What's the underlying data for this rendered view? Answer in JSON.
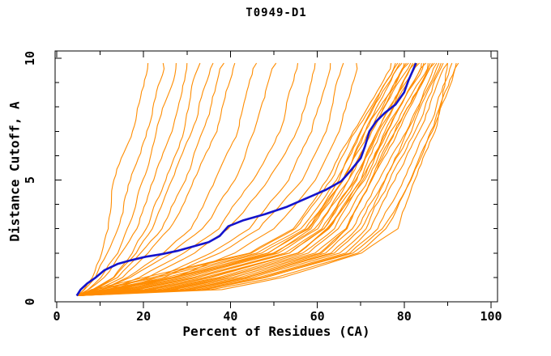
{
  "chart_data": {
    "type": "line",
    "title": "T0949-D1",
    "xlabel": "Percent of Residues (CA)",
    "ylabel": "Distance Cutoff, A",
    "xlim": [
      0,
      102
    ],
    "ylim": [
      0,
      10.3
    ],
    "x_major_ticks": [
      0,
      20,
      40,
      60,
      80,
      100
    ],
    "x_minor_step": 10,
    "y_major_ticks": [
      0,
      5,
      10
    ],
    "y_minor_step": 1,
    "grid": false,
    "legend": "none",
    "colors": {
      "model": "#ff8c00",
      "highlight": "#1414cc",
      "axis": "#000000",
      "background": "#ffffff"
    },
    "cutoff_levels": [
      0.25,
      0.5,
      1,
      2,
      3,
      5,
      7,
      9.8
    ],
    "highlighted_series": {
      "name": "highlighted-model",
      "points": [
        [
          4.6,
          0.25
        ],
        [
          5.5,
          0.5
        ],
        [
          7,
          0.75
        ],
        [
          9,
          1.0
        ],
        [
          11,
          1.3
        ],
        [
          14,
          1.55
        ],
        [
          17,
          1.7
        ],
        [
          20.5,
          1.85
        ],
        [
          24,
          1.95
        ],
        [
          28,
          2.1
        ],
        [
          32,
          2.3
        ],
        [
          35,
          2.45
        ],
        [
          37.5,
          2.7
        ],
        [
          39.5,
          3.1
        ],
        [
          43,
          3.35
        ],
        [
          48,
          3.6
        ],
        [
          53,
          3.9
        ],
        [
          57.5,
          4.25
        ],
        [
          62,
          4.6
        ],
        [
          65.5,
          4.95
        ],
        [
          67.5,
          5.35
        ],
        [
          70,
          5.9
        ],
        [
          71,
          6.4
        ],
        [
          72,
          7.0
        ],
        [
          73.5,
          7.4
        ],
        [
          75.5,
          7.75
        ],
        [
          78,
          8.1
        ],
        [
          80,
          8.6
        ],
        [
          81,
          9.1
        ],
        [
          82,
          9.5
        ],
        [
          82.7,
          9.8
        ]
      ]
    },
    "model_series_percent_at_cutoff": [
      [
        4.7,
        6,
        8,
        10,
        11.5,
        13.5,
        17,
        21
      ],
      [
        4.7,
        6.5,
        9,
        12,
        14,
        17,
        20.5,
        24.5
      ],
      [
        4.7,
        7,
        10,
        13.5,
        16,
        19.5,
        23,
        27.5
      ],
      [
        4.7,
        7.5,
        11,
        15,
        18,
        22,
        26,
        30
      ],
      [
        4.7,
        8,
        12.5,
        17,
        20.5,
        25,
        29,
        33
      ],
      [
        4.7,
        8.5,
        13,
        18.5,
        22.5,
        27,
        31.5,
        36
      ],
      [
        4.7,
        9,
        14,
        19.5,
        24.5,
        29.5,
        34,
        38.5
      ],
      [
        4.7,
        9.5,
        15,
        21,
        26,
        31.5,
        36.5,
        41
      ],
      [
        4.7,
        10,
        16,
        24,
        30.5,
        37,
        42,
        46
      ],
      [
        4.7,
        11,
        17.5,
        26.5,
        33.5,
        41,
        46,
        50.5
      ],
      [
        4.7,
        12,
        19,
        29,
        37,
        45,
        51,
        55.5
      ],
      [
        4.7,
        13,
        21,
        32,
        40,
        49,
        55,
        59.5
      ],
      [
        4.7,
        14,
        23,
        35,
        44,
        53,
        58.5,
        63
      ],
      [
        4.7,
        15,
        25,
        38,
        47,
        56,
        61.5,
        66
      ],
      [
        4.7,
        16,
        27,
        41,
        50,
        59,
        64.5,
        69
      ],
      [
        4.7,
        8,
        20,
        44,
        54,
        62,
        68,
        77
      ],
      [
        4.7,
        9,
        22,
        45,
        55,
        63,
        69,
        78
      ],
      [
        4.7,
        10,
        23,
        46,
        56,
        64,
        70,
        78.5
      ],
      [
        4.7,
        11,
        25,
        47,
        57,
        65,
        70.5,
        79
      ],
      [
        4.7,
        12,
        26,
        48,
        57.5,
        65.5,
        71,
        79.5
      ],
      [
        4.7,
        13,
        27,
        49,
        58,
        66,
        71.5,
        80
      ],
      [
        4.7,
        14,
        28,
        50,
        59,
        66.5,
        72,
        80.5
      ],
      [
        4.7,
        15,
        29,
        50.5,
        59.5,
        67,
        72.5,
        81
      ],
      [
        4.7,
        16,
        30,
        51,
        60,
        67.5,
        73,
        81.5
      ],
      [
        4.7,
        17,
        31,
        52,
        60.5,
        68,
        73.5,
        82
      ],
      [
        4.7,
        18,
        32,
        53,
        61,
        68.5,
        74,
        82.5
      ],
      [
        4.7,
        19,
        33,
        54,
        61.5,
        69,
        74.5,
        83
      ],
      [
        4.7,
        20,
        34,
        55,
        62,
        69.5,
        75,
        83.5
      ],
      [
        4.7,
        21,
        35,
        55.5,
        62.5,
        70,
        75.5,
        84
      ],
      [
        4.7,
        22,
        36,
        56,
        63,
        70.5,
        76,
        84.5
      ],
      [
        4.7,
        23,
        37,
        57,
        64,
        71,
        76.5,
        85
      ],
      [
        4.7,
        24,
        38,
        58,
        65,
        71.5,
        77,
        85.5
      ],
      [
        4.7,
        25,
        39,
        59,
        66,
        72,
        77.5,
        86
      ],
      [
        4.7,
        26,
        40,
        60,
        66.5,
        72.5,
        78,
        86.5
      ],
      [
        4.7,
        27,
        41,
        61,
        67,
        73,
        79,
        87
      ],
      [
        4.7,
        28,
        42,
        62,
        68,
        74,
        80,
        87.5
      ],
      [
        4.7,
        29,
        43,
        63,
        69,
        75,
        81,
        88
      ],
      [
        4.7,
        30,
        44,
        64,
        70,
        76,
        82,
        88.5
      ],
      [
        4.7,
        31,
        45,
        65,
        71,
        77,
        83,
        89
      ],
      [
        4.7,
        32,
        46,
        66,
        72,
        78,
        84,
        90
      ],
      [
        4.7,
        33,
        47,
        67,
        73.5,
        79.5,
        85,
        91
      ],
      [
        4.7,
        34,
        48,
        68,
        75,
        81,
        86,
        92
      ],
      [
        4.7,
        35,
        50,
        69,
        76,
        82,
        86.5,
        92.5
      ],
      [
        4.7,
        38,
        52,
        70,
        78,
        83,
        87,
        90
      ]
    ]
  }
}
